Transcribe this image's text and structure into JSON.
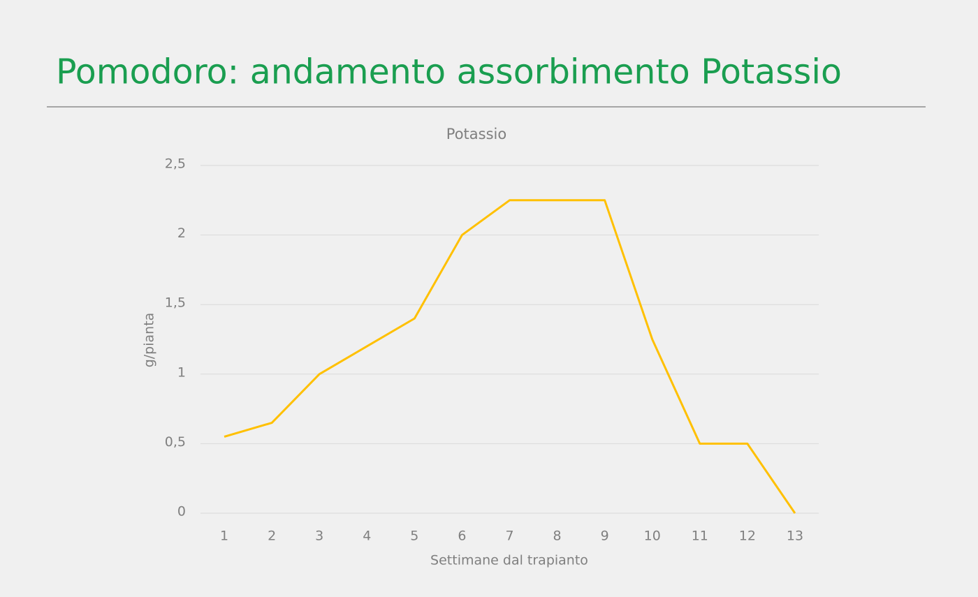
{
  "slide_title": "Pomodoro: andamento assorbimento Potassio",
  "chart_data": {
    "type": "line",
    "title": "Potassio",
    "xlabel": "Settimane dal trapianto",
    "ylabel": "g/pianta",
    "categories": [
      "1",
      "2",
      "3",
      "4",
      "5",
      "6",
      "7",
      "8",
      "9",
      "10",
      "11",
      "12",
      "13"
    ],
    "series": [
      {
        "name": "Potassio",
        "color": "#ffc000",
        "values": [
          0.55,
          0.65,
          1.0,
          1.2,
          1.4,
          2.0,
          2.25,
          2.25,
          2.25,
          1.25,
          0.5,
          0.5,
          0
        ]
      }
    ],
    "ylim": [
      0,
      2.5
    ],
    "yticks": [
      0,
      {
        "value": 0.5,
        "label": "0,5"
      },
      1,
      {
        "value": 1.5,
        "label": "1,5"
      },
      2,
      {
        "value": 2.5,
        "label": "2,5"
      }
    ],
    "grid": true
  }
}
